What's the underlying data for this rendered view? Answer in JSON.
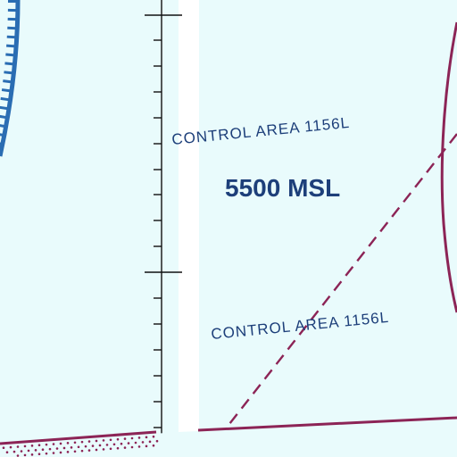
{
  "map": {
    "labels": {
      "control_area_upper": "CONTROL AREA 1156L",
      "control_area_lower": "CONTROL AREA 1156L",
      "altitude": "5500 MSL"
    },
    "colors": {
      "background": "#e9fbfc",
      "text": "#1d3f7a",
      "boundary_magenta": "#8c2456",
      "class_b_blue": "#2a6db3",
      "grid_white": "#ffffff",
      "tick_black": "#111111"
    },
    "features": {
      "dashed_control_boundary": "dashed-line",
      "restricted_area_edge": "dotted-magenta-band",
      "lat_lon_tick_line": "grid-ticks"
    }
  }
}
